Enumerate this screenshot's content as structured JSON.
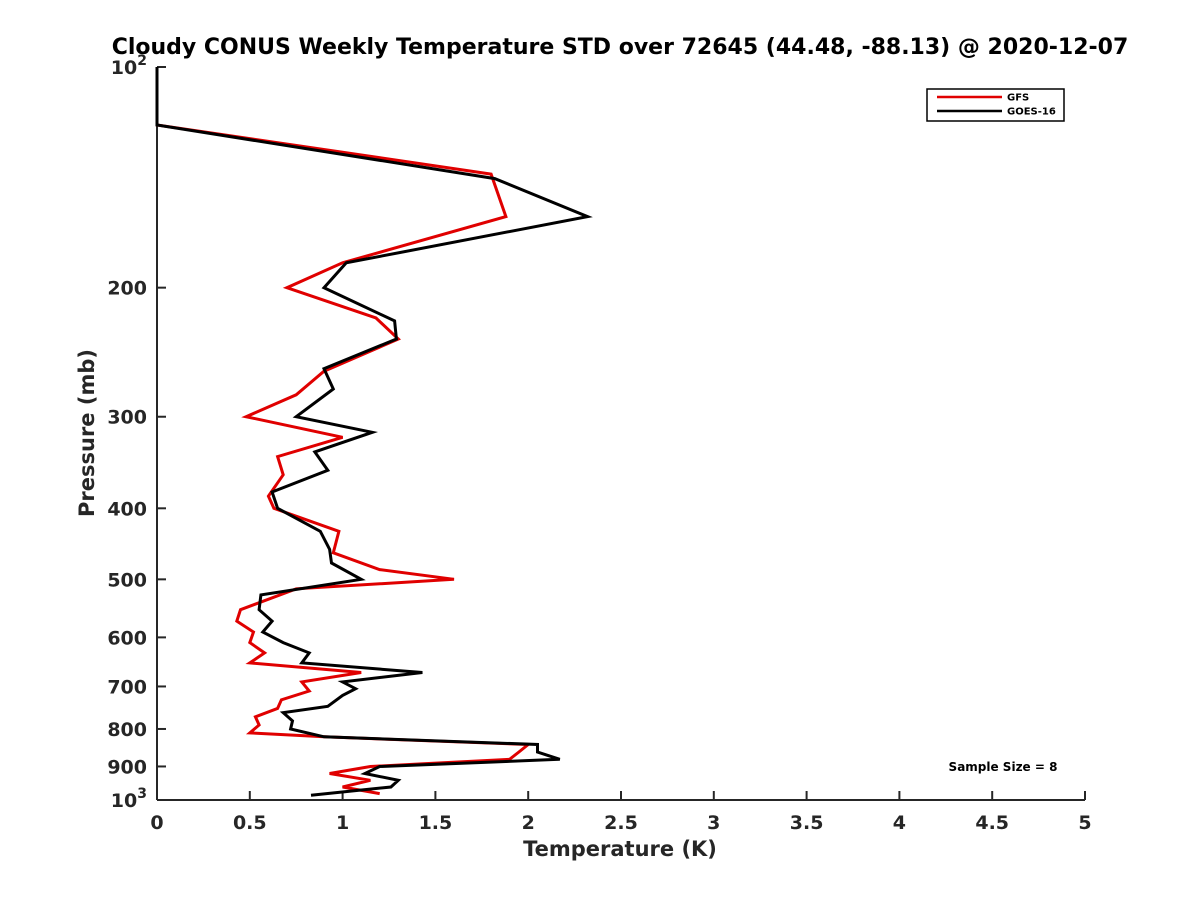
{
  "chart_data": {
    "type": "line",
    "title": "Cloudy CONUS Weekly Temperature STD over 72645 (44.48, -88.13) @ 2020-12-07",
    "xlabel": "Temperature (K)",
    "ylabel": "Pressure (mb)",
    "xlim": [
      0,
      5
    ],
    "ylim": [
      100,
      1000
    ],
    "y_scale": "log",
    "y_reversed": true,
    "x_ticks": [
      0,
      0.5,
      1,
      1.5,
      2,
      2.5,
      3,
      3.5,
      4,
      4.5,
      5
    ],
    "x_tick_labels": [
      "0",
      "0.5",
      "1",
      "1.5",
      "2",
      "2.5",
      "3",
      "3.5",
      "4",
      "4.5",
      "5"
    ],
    "y_ticks": [
      200,
      300,
      400,
      500,
      600,
      700,
      800,
      900
    ],
    "y_tick_labels": [
      "200",
      "300",
      "400",
      "500",
      "600",
      "700",
      "800",
      "900"
    ],
    "y_end_labels": [
      {
        "value": 100,
        "base": "10",
        "exp": "2"
      },
      {
        "value": 1000,
        "base": "10",
        "exp": "3"
      }
    ],
    "grid": false,
    "legend_position": "top-right",
    "annotation": "Sample Size = 8",
    "series": [
      {
        "name": "GFS",
        "color": "#e00000",
        "points": [
          {
            "x": 0.0,
            "p": 100
          },
          {
            "x": 0.0,
            "p": 120
          },
          {
            "x": 1.8,
            "p": 140
          },
          {
            "x": 1.88,
            "p": 160
          },
          {
            "x": 1.0,
            "p": 185
          },
          {
            "x": 0.7,
            "p": 200
          },
          {
            "x": 1.18,
            "p": 220
          },
          {
            "x": 1.3,
            "p": 235
          },
          {
            "x": 0.9,
            "p": 260
          },
          {
            "x": 0.75,
            "p": 280
          },
          {
            "x": 0.48,
            "p": 300
          },
          {
            "x": 1.0,
            "p": 320
          },
          {
            "x": 0.65,
            "p": 340
          },
          {
            "x": 0.68,
            "p": 360
          },
          {
            "x": 0.6,
            "p": 385
          },
          {
            "x": 0.63,
            "p": 400
          },
          {
            "x": 0.98,
            "p": 430
          },
          {
            "x": 0.95,
            "p": 460
          },
          {
            "x": 1.2,
            "p": 485
          },
          {
            "x": 1.6,
            "p": 500
          },
          {
            "x": 0.75,
            "p": 515
          },
          {
            "x": 0.45,
            "p": 550
          },
          {
            "x": 0.43,
            "p": 570
          },
          {
            "x": 0.52,
            "p": 590
          },
          {
            "x": 0.5,
            "p": 610
          },
          {
            "x": 0.58,
            "p": 630
          },
          {
            "x": 0.5,
            "p": 650
          },
          {
            "x": 1.1,
            "p": 670
          },
          {
            "x": 0.78,
            "p": 690
          },
          {
            "x": 0.82,
            "p": 710
          },
          {
            "x": 0.67,
            "p": 730
          },
          {
            "x": 0.65,
            "p": 750
          },
          {
            "x": 0.53,
            "p": 770
          },
          {
            "x": 0.55,
            "p": 790
          },
          {
            "x": 0.5,
            "p": 810
          },
          {
            "x": 0.9,
            "p": 820
          },
          {
            "x": 2.0,
            "p": 840
          },
          {
            "x": 1.95,
            "p": 860
          },
          {
            "x": 1.9,
            "p": 880
          },
          {
            "x": 1.15,
            "p": 900
          },
          {
            "x": 0.93,
            "p": 920
          },
          {
            "x": 1.15,
            "p": 940
          },
          {
            "x": 1.0,
            "p": 960
          },
          {
            "x": 1.2,
            "p": 980
          }
        ]
      },
      {
        "name": "GOES-16",
        "color": "#000000",
        "points": [
          {
            "x": 0.0,
            "p": 100
          },
          {
            "x": 0.0,
            "p": 120
          },
          {
            "x": 1.82,
            "p": 142
          },
          {
            "x": 2.32,
            "p": 160
          },
          {
            "x": 1.02,
            "p": 185
          },
          {
            "x": 0.9,
            "p": 200
          },
          {
            "x": 1.28,
            "p": 222
          },
          {
            "x": 1.29,
            "p": 235
          },
          {
            "x": 0.9,
            "p": 258
          },
          {
            "x": 0.95,
            "p": 275
          },
          {
            "x": 0.75,
            "p": 300
          },
          {
            "x": 1.16,
            "p": 315
          },
          {
            "x": 0.85,
            "p": 335
          },
          {
            "x": 0.92,
            "p": 355
          },
          {
            "x": 0.62,
            "p": 380
          },
          {
            "x": 0.65,
            "p": 400
          },
          {
            "x": 0.88,
            "p": 430
          },
          {
            "x": 0.93,
            "p": 455
          },
          {
            "x": 0.94,
            "p": 475
          },
          {
            "x": 1.1,
            "p": 500
          },
          {
            "x": 0.56,
            "p": 525
          },
          {
            "x": 0.55,
            "p": 550
          },
          {
            "x": 0.62,
            "p": 570
          },
          {
            "x": 0.57,
            "p": 590
          },
          {
            "x": 0.68,
            "p": 610
          },
          {
            "x": 0.82,
            "p": 630
          },
          {
            "x": 0.78,
            "p": 650
          },
          {
            "x": 1.43,
            "p": 670
          },
          {
            "x": 1.0,
            "p": 690
          },
          {
            "x": 1.07,
            "p": 705
          },
          {
            "x": 1.0,
            "p": 720
          },
          {
            "x": 0.92,
            "p": 745
          },
          {
            "x": 0.68,
            "p": 760
          },
          {
            "x": 0.73,
            "p": 780
          },
          {
            "x": 0.72,
            "p": 800
          },
          {
            "x": 0.9,
            "p": 820
          },
          {
            "x": 2.05,
            "p": 840
          },
          {
            "x": 2.05,
            "p": 860
          },
          {
            "x": 2.17,
            "p": 880
          },
          {
            "x": 1.2,
            "p": 900
          },
          {
            "x": 1.12,
            "p": 920
          },
          {
            "x": 1.3,
            "p": 940
          },
          {
            "x": 1.26,
            "p": 960
          },
          {
            "x": 0.83,
            "p": 985
          }
        ]
      }
    ]
  }
}
